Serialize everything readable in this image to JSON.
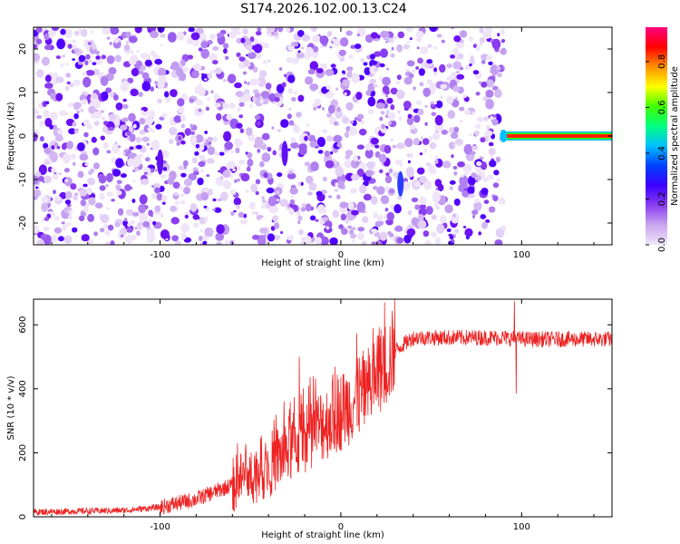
{
  "figure": {
    "title": "S174.2026.102.00.13.C24"
  },
  "chart_data": [
    {
      "type": "heatmap",
      "name": "spectrogram",
      "xlabel": "Height of straight line (km)",
      "ylabel": "Frequency (Hz)",
      "xlim": [
        -170,
        150
      ],
      "ylim": [
        -25,
        25
      ],
      "xticks": [
        -100,
        0,
        100
      ],
      "xtick_labels": [
        "-100",
        "0",
        "100"
      ],
      "yticks": [
        -20,
        -10,
        0,
        10,
        20
      ],
      "ytick_labels": [
        "-20",
        "-10",
        "0",
        "10",
        "20"
      ],
      "noise_region_x": [
        -170,
        90
      ],
      "gaps_x": [
        -95,
        -30,
        35
      ],
      "blob_x": [
        -100,
        -31,
        33
      ],
      "tone": {
        "x": [
          90,
          150
        ],
        "frequency": 0
      },
      "colorbar": {
        "label": "Normalized spectral amplitude",
        "range": [
          0,
          0.95
        ],
        "ticks": [
          0,
          0.2,
          0.4,
          0.6,
          0.8
        ],
        "tick_labels": [
          "0.0",
          "0.2",
          "0.4",
          "0.6",
          "0.8"
        ],
        "colors": [
          "#f0e6f8",
          "#c9a6ef",
          "#8a3cf0",
          "#3c00ff",
          "#0040ff",
          "#00c0ff",
          "#00ff80",
          "#40ff00",
          "#ffff00",
          "#ff9000",
          "#ff0000",
          "#ff0080"
        ]
      }
    },
    {
      "type": "line",
      "name": "snr",
      "xlabel": "Height of straight line (km)",
      "ylabel": "SNR (10 * v/v)",
      "xlim": [
        -170,
        150
      ],
      "ylim": [
        0,
        680
      ],
      "xticks": [
        -100,
        0,
        100
      ],
      "xtick_labels": [
        "-100",
        "0",
        "100"
      ],
      "yticks": [
        0,
        200,
        400,
        600
      ],
      "ytick_labels": [
        "0",
        "200",
        "400",
        "600"
      ],
      "color": "#ee2222",
      "trend_x": [
        -170,
        -120,
        -100,
        -80,
        -60,
        -40,
        -20,
        0,
        15,
        30,
        40,
        50,
        70,
        90,
        100,
        150
      ],
      "trend_y": [
        15,
        20,
        30,
        55,
        100,
        160,
        250,
        330,
        400,
        520,
        560,
        560,
        560,
        560,
        555,
        555
      ],
      "spikes": [
        {
          "x": 96,
          "y": 675
        },
        {
          "x": 97,
          "y": 385
        },
        {
          "x": -23,
          "y": 500
        }
      ]
    }
  ]
}
